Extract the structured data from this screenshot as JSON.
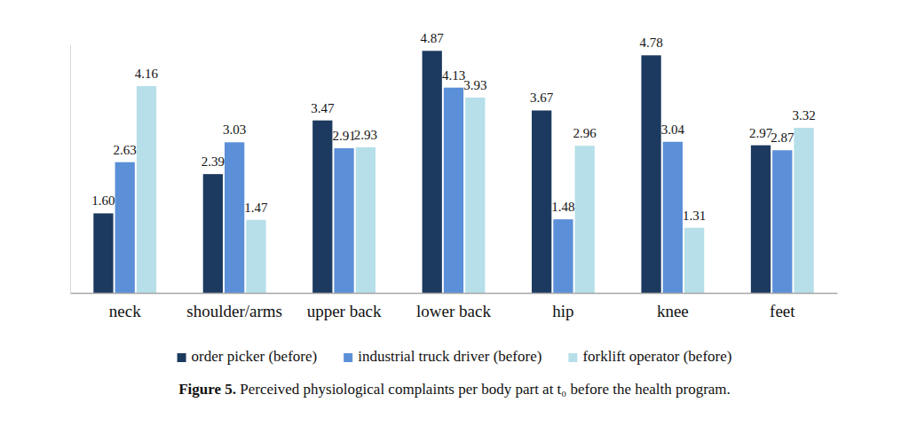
{
  "chart_data": {
    "type": "bar",
    "title": "Figure 5. Perceived physiological complaints per body part at t₀ before the health program.",
    "categories": [
      "neck",
      "shoulder/arms",
      "upper back",
      "lower back",
      "hip",
      "knee",
      "feet"
    ],
    "series": [
      {
        "name": "order picker (before)",
        "color": "#1c3a5f",
        "values": [
          1.6,
          2.39,
          3.47,
          4.87,
          3.67,
          4.78,
          2.97
        ],
        "value_labels": [
          "1.60",
          "2.39",
          "3.47",
          "4.87",
          "3.67",
          "4.78",
          "2.97"
        ]
      },
      {
        "name": "industrial truck driver (before)",
        "color": "#5b8fd8",
        "values": [
          2.63,
          3.03,
          2.91,
          4.13,
          1.48,
          3.04,
          2.87
        ],
        "value_labels": [
          "2.63",
          "3.03",
          "2.91",
          "4.13",
          "1.48",
          "3.04",
          "2.87"
        ]
      },
      {
        "name": "forklift operator (before)",
        "color": "#b6dfe9",
        "values": [
          4.16,
          1.47,
          2.93,
          3.93,
          2.96,
          1.31,
          3.32
        ],
        "value_labels": [
          "4.16",
          "1.47",
          "2.93",
          "3.93",
          "2.96",
          "1.31",
          "3.32"
        ]
      }
    ],
    "ylim": [
      0,
      5
    ],
    "yticks": [],
    "tick_labels": "x",
    "data_labels": true,
    "grid": false,
    "legend": "bottom"
  }
}
